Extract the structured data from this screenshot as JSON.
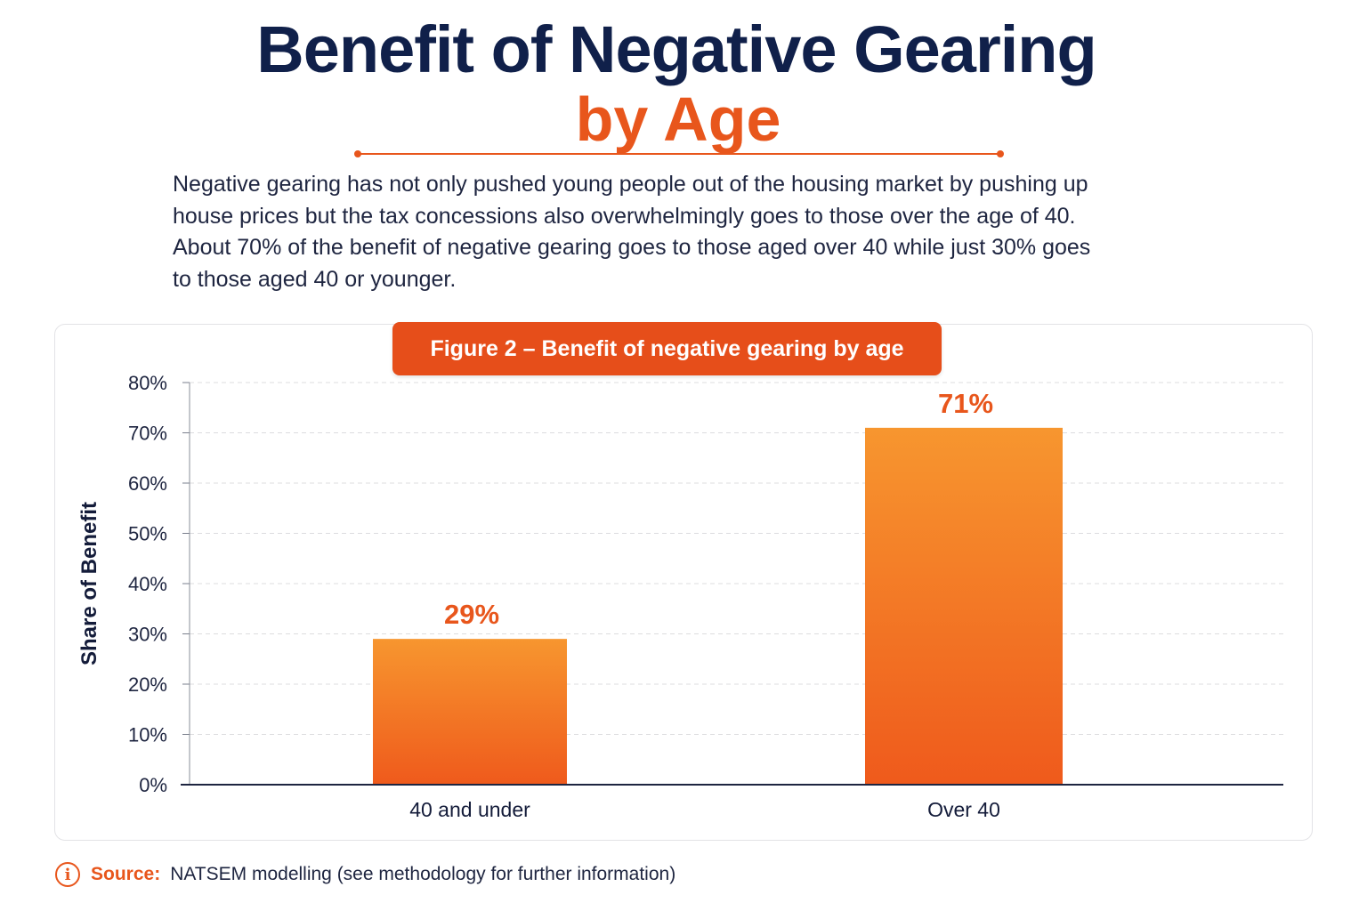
{
  "header": {
    "title_line1": "Benefit of Negative Gearing",
    "title_line2": "by Age",
    "accent_color": "#e8561c",
    "title_color": "#10204a"
  },
  "intro": {
    "text": "Negative gearing has not only pushed young people out of the housing market by pushing up house prices but the tax concessions also overwhelmingly goes to those over the age of 40. About 70% of the benefit of negative gearing goes to those aged over 40 while just 30% goes to those aged 40 or younger."
  },
  "figure": {
    "badge": "Figure 2 – Benefit of negative gearing by age"
  },
  "chart_data": {
    "type": "bar",
    "title": "Figure 2 – Benefit of negative gearing by age",
    "categories": [
      "40 and under",
      "Over 40"
    ],
    "values": [
      29,
      71
    ],
    "data_labels": [
      "29%",
      "71%"
    ],
    "xlabel": "",
    "ylabel": "Share of Benefit",
    "ylim": [
      0,
      80
    ],
    "yticks": [
      0,
      10,
      20,
      30,
      40,
      50,
      60,
      70,
      80
    ],
    "ytick_labels": [
      "0%",
      "10%",
      "20%",
      "30%",
      "40%",
      "50%",
      "60%",
      "70%",
      "80%"
    ],
    "grid": true,
    "bar_color_top": "#f7962f",
    "bar_color_bottom": "#ef5a1c",
    "label_color": "#e8561c"
  },
  "source": {
    "icon": "info-icon",
    "label": "Source:",
    "text": "NATSEM modelling (see methodology for further information)"
  }
}
